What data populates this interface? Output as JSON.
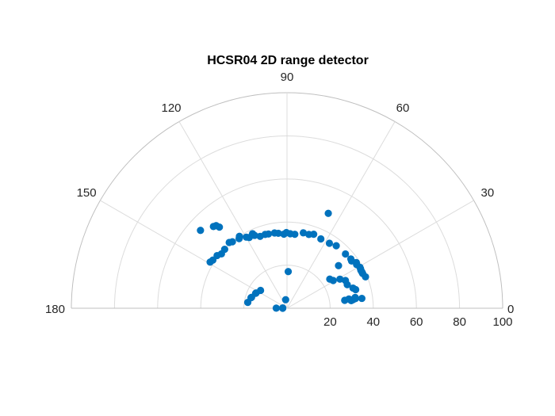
{
  "chart_data": {
    "type": "scatter",
    "polar": true,
    "title": "HCSR04 2D range detector",
    "theta_range_deg": [
      0,
      180
    ],
    "r_range": [
      0,
      100
    ],
    "theta_ticks": [
      0,
      30,
      60,
      90,
      120,
      150,
      180
    ],
    "r_ticks": [
      20,
      40,
      60,
      80,
      100
    ],
    "r_tick_labels": [
      "20",
      "40",
      "60",
      "80",
      "100"
    ],
    "grid": true,
    "marker_color": "#0072BD",
    "points": [
      [
        8.0,
        32
      ],
      [
        7.5,
        31
      ],
      [
        7.0,
        30
      ],
      [
        6.8,
        30
      ],
      [
        7.5,
        35
      ],
      [
        8.2,
        32
      ],
      [
        9.0,
        32
      ],
      [
        8.5,
        29
      ],
      [
        7.8,
        27
      ],
      [
        15.2,
        33
      ],
      [
        17.0,
        32
      ],
      [
        21.4,
        30
      ],
      [
        25.4,
        30
      ],
      [
        28.8,
        28
      ],
      [
        31.0,
        25
      ],
      [
        34.3,
        24
      ],
      [
        39.6,
        31
      ],
      [
        66.5,
        48
      ],
      [
        88.1,
        17
      ],
      [
        99.1,
        4
      ],
      [
        175.9,
        2
      ],
      [
        179.4,
        5
      ],
      [
        180.0,
        2
      ]
    ],
    "series": [
      {
        "values_r": [
          39.2,
          38.6,
          38.6,
          38.5,
          38.7,
          38.8,
          38.1,
          38.5,
          37.1,
          37.4,
          37.0,
          36.9,
          36.0,
          35.8,
          36.5,
          35.7,
          35.8,
          34.5,
          34.6,
          35.1,
          34.4
        ],
        "values_theta": [
          21.8,
          24.7,
          25.7,
          27.2,
          28.3,
          29.3,
          32.1,
          33.4,
          36.2,
          37.7,
          42.9,
          51.8,
          56.9,
          64.0,
          70.2,
          73.5,
          77.8,
          84.0,
          87.5,
          90.5,
          92.4
        ]
      },
      {
        "values_r": [
          35.0,
          35.4,
          35.5,
          35.7,
          35.6,
          37.0,
          38.1,
          37.2,
          38.0,
          40.0,
          39.2,
          39.9,
          40.6,
          39.8,
          39.5,
          40.6,
          41.0,
          41.6
        ],
        "values_theta": [
          96.6,
          99.4,
          104.0,
          106.5,
          110.5,
          114.0,
          114.8,
          118.1,
          119.8,
          123.5,
          124.5,
          129.4,
          131.3,
          136.6,
          140.3,
          143.0,
          147.0,
          149.0
        ]
      },
      {
        "values_r": [
          49.0,
          50.5,
          51.0,
          54.0
        ],
        "values_theta": [
          129.8,
          130.6,
          132.0,
          138.0
        ]
      },
      {
        "values_r": [
          14.8,
          16.0,
          16.1,
          17.2,
          17.4,
          18.4
        ],
        "values_theta": [
          146.0,
          153.7,
          154.5,
          162.9,
          163.7,
          171.5
        ]
      }
    ]
  }
}
